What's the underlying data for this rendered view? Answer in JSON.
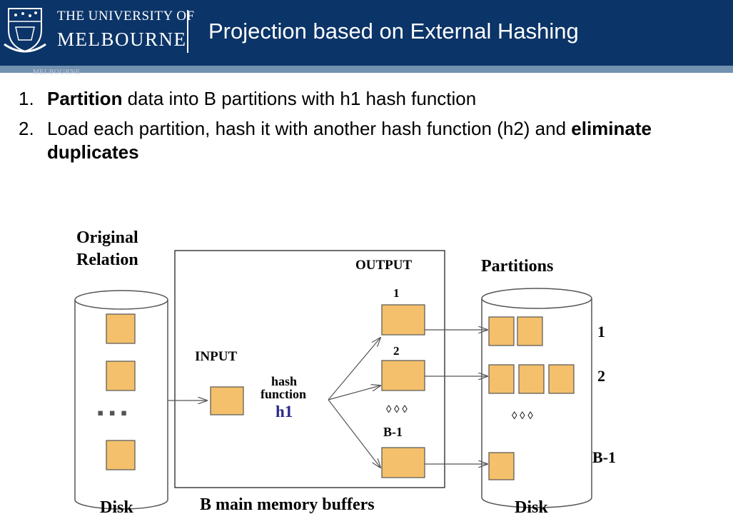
{
  "header": {
    "university_line1": "THE UNIVERSITY OF",
    "university_line2": "MELBOURNE",
    "title": "Projection based on External Hashing",
    "watermark": "MELBOURNE"
  },
  "bullets": [
    {
      "number": "1.",
      "bold_start": "Partition",
      "text": " data into B partitions with h1 hash function",
      "bold_end": ""
    },
    {
      "number": "2.",
      "bold_start": "",
      "text": "Load each partition, hash it with another hash function (h2) and ",
      "bold_end": "eliminate duplicates"
    }
  ],
  "diagram": {
    "original_relation_line1": "Original",
    "original_relation_line2": "Relation",
    "left_disk_label": "Disk",
    "left_ellipsis": "▪  ▪  ▪",
    "input_label": "INPUT",
    "hash_label_1": "hash",
    "hash_label_2": "function",
    "hash_fn": "h1",
    "output_label": "OUTPUT",
    "output_1": "1",
    "output_2": "2",
    "output_dots": "◊  ◊  ◊",
    "output_b1": "B-1",
    "buffers_label": "B main memory buffers",
    "partitions_label": "Partitions",
    "partition_1": "1",
    "partition_2": "2",
    "partition_dots": "◊  ◊  ◊",
    "partition_b1": "B-1",
    "right_disk_label": "Disk",
    "colors": {
      "page": "#f4c06b",
      "header": "#0b3468",
      "stripe": "#7392b0",
      "hash_fn": "#2a2a8c"
    }
  }
}
